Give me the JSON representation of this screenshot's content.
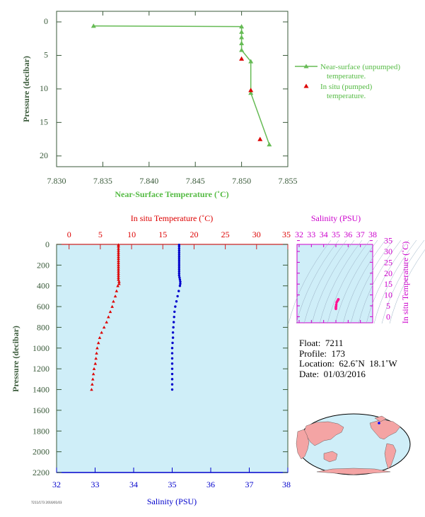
{
  "chart_data": [
    {
      "type": "line",
      "xlabel": "Near-Surface Temperature (˚C)",
      "ylabel": "Pressure (decibar)",
      "xlim": [
        7.83,
        7.855
      ],
      "ylim": [
        0,
        22
      ],
      "x_ticks": [
        "7.830",
        "7.835",
        "7.840",
        "7.845",
        "7.850",
        "7.855"
      ],
      "y_ticks": [
        "0",
        "5",
        "10",
        "15",
        "20"
      ],
      "legend_position": "right",
      "series": [
        {
          "name": "Near-surface (unpumped) temperature.",
          "color": "#66bb55",
          "marker": "triangle",
          "points": [
            [
              7.834,
              0.6
            ],
            [
              7.85,
              0.7
            ],
            [
              7.85,
              1.5
            ],
            [
              7.85,
              2.3
            ],
            [
              7.85,
              3.2
            ],
            [
              7.85,
              4.2
            ],
            [
              7.851,
              5.9
            ],
            [
              7.851,
              10.6
            ],
            [
              7.853,
              18.3
            ]
          ]
        },
        {
          "name": "In situ (pumped) temperature.",
          "color": "#dd0000",
          "marker": "triangle",
          "points": [
            [
              7.85,
              5.5
            ],
            [
              7.851,
              10.2
            ],
            [
              7.852,
              17.5
            ]
          ]
        }
      ]
    },
    {
      "type": "scatter",
      "ylabel": "Pressure (decibar)",
      "ylim": [
        0,
        2200
      ],
      "y_ticks": [
        "0",
        "200",
        "400",
        "600",
        "800",
        "1000",
        "1200",
        "1400",
        "1600",
        "1800",
        "2000",
        "2200"
      ],
      "top_axis": {
        "label": "In situ Temperature (˚C)",
        "lim": [
          -2,
          35
        ],
        "ticks": [
          "0",
          "5",
          "10",
          "15",
          "20",
          "25",
          "30",
          "35"
        ],
        "color": "#dd0000"
      },
      "bottom_axis": {
        "label": "Salinity (PSU)",
        "lim": [
          32,
          38
        ],
        "ticks": [
          "32",
          "33",
          "34",
          "35",
          "36",
          "37",
          "38"
        ],
        "color": "#0000cc"
      },
      "series": [
        {
          "name": "In situ Temperature",
          "color": "#dd0000",
          "marker": "triangle",
          "points": [
            [
              7.9,
              5
            ],
            [
              7.9,
              20
            ],
            [
              7.9,
              40
            ],
            [
              7.9,
              60
            ],
            [
              7.9,
              80
            ],
            [
              7.9,
              100
            ],
            [
              7.9,
              120
            ],
            [
              7.9,
              140
            ],
            [
              7.9,
              160
            ],
            [
              7.9,
              180
            ],
            [
              7.9,
              200
            ],
            [
              7.9,
              220
            ],
            [
              7.9,
              240
            ],
            [
              7.9,
              260
            ],
            [
              7.9,
              280
            ],
            [
              7.9,
              300
            ],
            [
              7.9,
              320
            ],
            [
              7.9,
              340
            ],
            [
              8.0,
              360
            ],
            [
              8.0,
              380
            ],
            [
              7.8,
              400
            ],
            [
              7.6,
              450
            ],
            [
              7.4,
              500
            ],
            [
              7.1,
              550
            ],
            [
              6.9,
              600
            ],
            [
              6.6,
              650
            ],
            [
              6.3,
              700
            ],
            [
              6.0,
              750
            ],
            [
              5.6,
              800
            ],
            [
              5.2,
              850
            ],
            [
              4.9,
              900
            ],
            [
              4.7,
              950
            ],
            [
              4.5,
              1000
            ],
            [
              4.4,
              1050
            ],
            [
              4.3,
              1100
            ],
            [
              4.2,
              1150
            ],
            [
              4.0,
              1200
            ],
            [
              3.9,
              1250
            ],
            [
              3.8,
              1300
            ],
            [
              3.7,
              1350
            ],
            [
              3.6,
              1400
            ]
          ]
        },
        {
          "name": "Salinity",
          "color": "#0000cc",
          "marker": "circle",
          "points": [
            [
              35.18,
              5
            ],
            [
              35.18,
              20
            ],
            [
              35.18,
              40
            ],
            [
              35.18,
              60
            ],
            [
              35.18,
              80
            ],
            [
              35.18,
              100
            ],
            [
              35.18,
              120
            ],
            [
              35.18,
              140
            ],
            [
              35.18,
              160
            ],
            [
              35.18,
              180
            ],
            [
              35.18,
              200
            ],
            [
              35.18,
              220
            ],
            [
              35.18,
              240
            ],
            [
              35.18,
              260
            ],
            [
              35.18,
              280
            ],
            [
              35.18,
              300
            ],
            [
              35.19,
              320
            ],
            [
              35.2,
              340
            ],
            [
              35.21,
              360
            ],
            [
              35.21,
              380
            ],
            [
              35.2,
              400
            ],
            [
              35.17,
              450
            ],
            [
              35.14,
              500
            ],
            [
              35.11,
              550
            ],
            [
              35.08,
              600
            ],
            [
              35.06,
              650
            ],
            [
              35.05,
              700
            ],
            [
              35.04,
              750
            ],
            [
              35.03,
              800
            ],
            [
              35.02,
              850
            ],
            [
              35.02,
              900
            ],
            [
              35.01,
              950
            ],
            [
              35.0,
              1000
            ],
            [
              35.0,
              1050
            ],
            [
              35.0,
              1100
            ],
            [
              35.0,
              1150
            ],
            [
              35.0,
              1200
            ],
            [
              35.0,
              1250
            ],
            [
              35.0,
              1300
            ],
            [
              35.0,
              1350
            ],
            [
              35.0,
              1400
            ]
          ]
        }
      ]
    },
    {
      "type": "scatter",
      "xlabel": "Salinity (PSU)",
      "ylabel": "In situ Temperature (˚C)",
      "xlim": [
        32,
        38
      ],
      "ylim": [
        -1,
        35
      ],
      "x_ticks": [
        "32",
        "33",
        "34",
        "35",
        "36",
        "37",
        "38"
      ],
      "y_ticks": [
        "0",
        "5",
        "10",
        "15",
        "20",
        "25",
        "30",
        "35"
      ],
      "color": "#cc00cc",
      "series": [
        {
          "name": "T-S",
          "color": "#ff1493",
          "points": [
            [
              35.18,
              7.9
            ],
            [
              35.21,
              8.0
            ],
            [
              35.17,
              7.6
            ],
            [
              35.11,
              7.1
            ],
            [
              35.06,
              6.6
            ],
            [
              35.03,
              5.6
            ],
            [
              35.02,
              4.9
            ],
            [
              35.0,
              4.5
            ],
            [
              35.0,
              4.2
            ],
            [
              35.0,
              3.8
            ],
            [
              35.0,
              3.6
            ]
          ]
        }
      ]
    }
  ],
  "info": {
    "float": "Float:  7211",
    "profile": "Profile:  173",
    "location": "Location:  62.6˚N  18.1˚W",
    "date": "Date:  01/03/2016"
  },
  "footer_code": "7211/173 2016/01/03"
}
